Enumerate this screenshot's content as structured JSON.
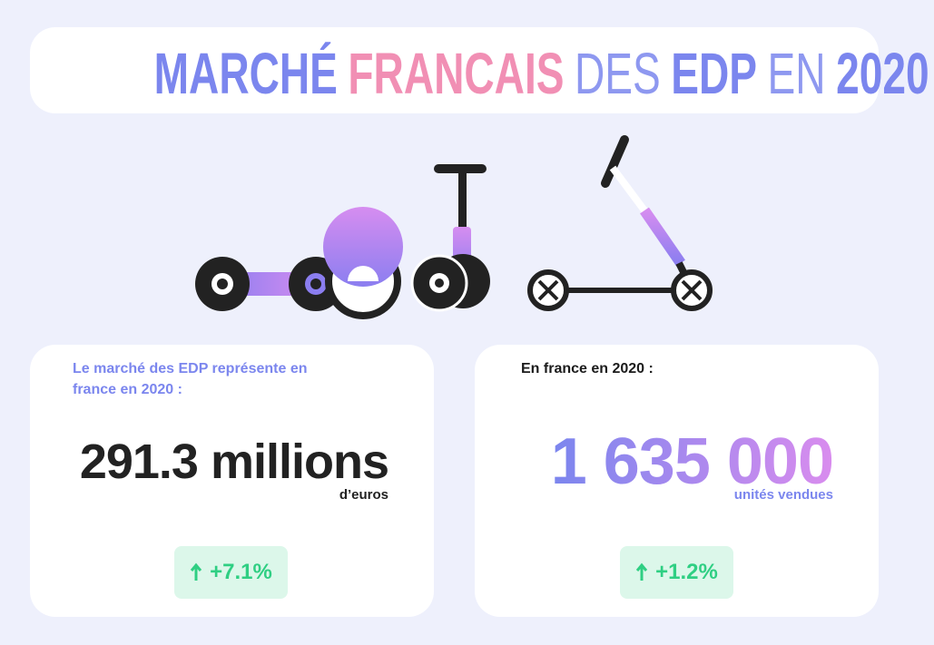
{
  "header": {
    "title_parts": [
      "MARCHÉ",
      "FRANCAIS",
      "DES",
      "EDP",
      "EN",
      "2020"
    ]
  },
  "cards": [
    {
      "label": "Le marché des EDP représente en france en 2020 :",
      "value": "291.3 millions",
      "unit": "d’euros",
      "change": "+7.1%"
    },
    {
      "label": "En france en 2020 :",
      "value": "1 635 000",
      "unit": "unités vendues",
      "change": "+1.2%"
    }
  ]
}
